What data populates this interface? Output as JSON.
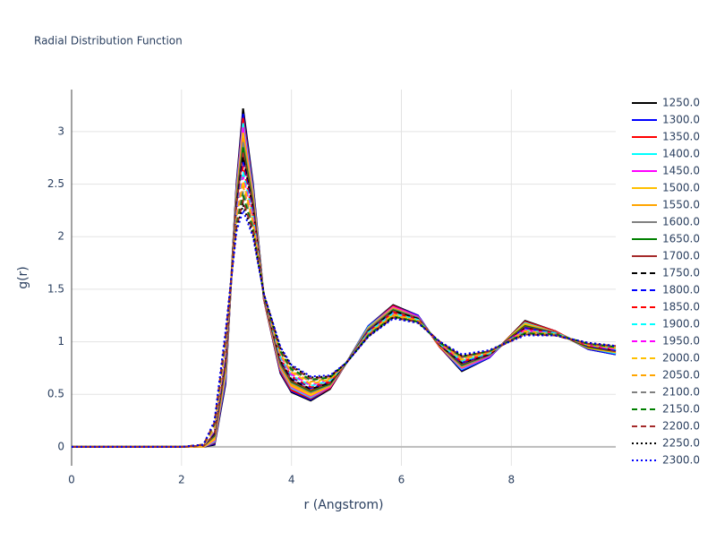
{
  "chart_data": {
    "type": "line",
    "title": "Radial Distribution Function",
    "x_label": "r (Angstrom)",
    "y_label": "g(r)",
    "x": [
      0,
      1,
      2,
      2.4,
      2.6,
      2.8,
      3.0,
      3.12,
      3.3,
      3.5,
      3.8,
      4.0,
      4.35,
      4.7,
      5.0,
      5.4,
      5.85,
      6.3,
      6.7,
      7.1,
      7.6,
      8.25,
      8.8,
      9.4,
      9.9
    ],
    "xlim": [
      0,
      9.9
    ],
    "xticks": [
      0,
      2,
      4,
      6,
      8
    ],
    "ylim": [
      -0.18,
      3.4
    ],
    "yticks": [
      0,
      0.5,
      1,
      1.5,
      2,
      2.5,
      3
    ],
    "grid": true,
    "series": [
      {
        "name": "1250.0",
        "color": "#000000",
        "dash": "solid",
        "values": [
          0,
          0,
          0,
          0,
          0.02,
          0.6,
          2.5,
          3.22,
          2.5,
          1.4,
          0.7,
          0.52,
          0.44,
          0.55,
          0.8,
          1.15,
          1.35,
          1.25,
          0.95,
          0.72,
          0.85,
          1.2,
          1.1,
          0.93,
          0.88
        ]
      },
      {
        "name": "1300.0",
        "color": "#0000ff",
        "dash": "solid",
        "values": [
          0,
          0,
          0,
          0,
          0.03,
          0.62,
          2.48,
          3.17,
          2.48,
          1.4,
          0.71,
          0.53,
          0.45,
          0.56,
          0.8,
          1.15,
          1.34,
          1.25,
          0.95,
          0.73,
          0.85,
          1.19,
          1.1,
          0.93,
          0.88
        ]
      },
      {
        "name": "1350.0",
        "color": "#ff0000",
        "dash": "solid",
        "values": [
          0,
          0,
          0,
          0,
          0.04,
          0.65,
          2.46,
          3.13,
          2.45,
          1.4,
          0.72,
          0.54,
          0.46,
          0.56,
          0.8,
          1.14,
          1.34,
          1.24,
          0.95,
          0.74,
          0.86,
          1.19,
          1.1,
          0.94,
          0.89
        ]
      },
      {
        "name": "1400.0",
        "color": "#00ffff",
        "dash": "solid",
        "values": [
          0,
          0,
          0,
          0,
          0.05,
          0.67,
          2.44,
          3.08,
          2.43,
          1.41,
          0.74,
          0.56,
          0.47,
          0.57,
          0.8,
          1.14,
          1.33,
          1.24,
          0.96,
          0.74,
          0.86,
          1.18,
          1.09,
          0.94,
          0.89
        ]
      },
      {
        "name": "1450.0",
        "color": "#ff00ff",
        "dash": "solid",
        "values": [
          0,
          0,
          0,
          0,
          0.06,
          0.7,
          2.41,
          3.04,
          2.4,
          1.41,
          0.75,
          0.57,
          0.48,
          0.57,
          0.8,
          1.13,
          1.33,
          1.24,
          0.96,
          0.75,
          0.86,
          1.17,
          1.09,
          0.94,
          0.9
        ]
      },
      {
        "name": "1500.0",
        "color": "#ffc000",
        "dash": "solid",
        "values": [
          0,
          0,
          0,
          0,
          0.07,
          0.72,
          2.39,
          2.99,
          2.38,
          1.41,
          0.76,
          0.58,
          0.49,
          0.58,
          0.8,
          1.13,
          1.32,
          1.23,
          0.96,
          0.76,
          0.87,
          1.17,
          1.09,
          0.94,
          0.9
        ]
      },
      {
        "name": "1550.0",
        "color": "#ffa500",
        "dash": "solid",
        "values": [
          0,
          0,
          0,
          0.01,
          0.09,
          0.74,
          2.37,
          2.94,
          2.36,
          1.41,
          0.77,
          0.59,
          0.51,
          0.59,
          0.8,
          1.12,
          1.31,
          1.23,
          0.96,
          0.77,
          0.87,
          1.16,
          1.09,
          0.95,
          0.9
        ]
      },
      {
        "name": "1600.0",
        "color": "#808080",
        "dash": "solid",
        "values": [
          0,
          0,
          0,
          0.01,
          0.1,
          0.77,
          2.35,
          2.9,
          2.33,
          1.42,
          0.78,
          0.61,
          0.52,
          0.59,
          0.8,
          1.12,
          1.31,
          1.23,
          0.97,
          0.77,
          0.87,
          1.15,
          1.09,
          0.95,
          0.91
        ]
      },
      {
        "name": "1650.0",
        "color": "#008000",
        "dash": "solid",
        "values": [
          0,
          0,
          0,
          0.01,
          0.11,
          0.79,
          2.33,
          2.85,
          2.31,
          1.42,
          0.8,
          0.62,
          0.53,
          0.6,
          0.8,
          1.11,
          1.3,
          1.22,
          0.97,
          0.78,
          0.88,
          1.15,
          1.08,
          0.95,
          0.91
        ]
      },
      {
        "name": "1700.0",
        "color": "#a52a2a",
        "dash": "solid",
        "values": [
          0,
          0,
          0,
          0.01,
          0.12,
          0.81,
          2.31,
          2.8,
          2.29,
          1.42,
          0.81,
          0.63,
          0.54,
          0.61,
          0.8,
          1.11,
          1.29,
          1.22,
          0.97,
          0.79,
          0.88,
          1.14,
          1.08,
          0.96,
          0.91
        ]
      },
      {
        "name": "1750.0",
        "color": "#000000",
        "dash": "dash",
        "values": [
          0,
          0,
          0,
          0.01,
          0.13,
          0.84,
          2.29,
          2.76,
          2.26,
          1.42,
          0.82,
          0.64,
          0.55,
          0.61,
          0.8,
          1.1,
          1.29,
          1.22,
          0.97,
          0.8,
          0.88,
          1.13,
          1.08,
          0.96,
          0.92
        ]
      },
      {
        "name": "1800.0",
        "color": "#0000ff",
        "dash": "dash",
        "values": [
          0,
          0,
          0,
          0.01,
          0.14,
          0.86,
          2.26,
          2.71,
          2.24,
          1.43,
          0.83,
          0.66,
          0.56,
          0.62,
          0.8,
          1.1,
          1.28,
          1.21,
          0.98,
          0.8,
          0.89,
          1.13,
          1.08,
          0.96,
          0.92
        ]
      },
      {
        "name": "1850.0",
        "color": "#ff0000",
        "dash": "dash",
        "values": [
          0,
          0,
          0,
          0.01,
          0.15,
          0.89,
          2.24,
          2.67,
          2.21,
          1.43,
          0.84,
          0.67,
          0.57,
          0.62,
          0.8,
          1.09,
          1.28,
          1.21,
          0.98,
          0.81,
          0.89,
          1.12,
          1.08,
          0.96,
          0.93
        ]
      },
      {
        "name": "1900.0",
        "color": "#00ffff",
        "dash": "dash",
        "values": [
          0,
          0,
          0,
          0.01,
          0.16,
          0.91,
          2.22,
          2.62,
          2.19,
          1.43,
          0.85,
          0.68,
          0.58,
          0.63,
          0.8,
          1.09,
          1.27,
          1.21,
          0.98,
          0.82,
          0.89,
          1.11,
          1.08,
          0.97,
          0.93
        ]
      },
      {
        "name": "1950.0",
        "color": "#ff00ff",
        "dash": "dash",
        "values": [
          0,
          0,
          0,
          0.01,
          0.17,
          0.93,
          2.2,
          2.57,
          2.17,
          1.43,
          0.87,
          0.69,
          0.59,
          0.64,
          0.8,
          1.08,
          1.26,
          1.2,
          0.98,
          0.83,
          0.9,
          1.11,
          1.07,
          0.97,
          0.93
        ]
      },
      {
        "name": "2000.0",
        "color": "#ffc000",
        "dash": "dash",
        "values": [
          0,
          0,
          0,
          0.01,
          0.18,
          0.96,
          2.18,
          2.53,
          2.14,
          1.44,
          0.88,
          0.71,
          0.6,
          0.64,
          0.8,
          1.08,
          1.26,
          1.2,
          0.99,
          0.83,
          0.9,
          1.1,
          1.07,
          0.97,
          0.94
        ]
      },
      {
        "name": "2050.0",
        "color": "#ffa500",
        "dash": "dash",
        "values": [
          0,
          0,
          0,
          0.02,
          0.2,
          0.98,
          2.16,
          2.48,
          2.12,
          1.44,
          0.89,
          0.72,
          0.62,
          0.65,
          0.8,
          1.07,
          1.25,
          1.2,
          0.99,
          0.84,
          0.9,
          1.09,
          1.07,
          0.98,
          0.94
        ]
      },
      {
        "name": "2100.0",
        "color": "#808080",
        "dash": "dash",
        "values": [
          0,
          0,
          0,
          0.02,
          0.21,
          1.0,
          2.14,
          2.43,
          2.1,
          1.44,
          0.9,
          0.73,
          0.63,
          0.66,
          0.8,
          1.07,
          1.24,
          1.19,
          0.99,
          0.85,
          0.91,
          1.09,
          1.07,
          0.98,
          0.95
        ]
      },
      {
        "name": "2150.0",
        "color": "#008000",
        "dash": "dash",
        "values": [
          0,
          0,
          0,
          0.02,
          0.22,
          1.03,
          2.11,
          2.39,
          2.07,
          1.44,
          0.91,
          0.74,
          0.64,
          0.66,
          0.8,
          1.06,
          1.24,
          1.19,
          0.99,
          0.86,
          0.91,
          1.08,
          1.07,
          0.98,
          0.95
        ]
      },
      {
        "name": "2200.0",
        "color": "#a52a2a",
        "dash": "dash",
        "values": [
          0,
          0,
          0,
          0.02,
          0.23,
          1.05,
          2.09,
          2.34,
          2.05,
          1.45,
          0.93,
          0.76,
          0.65,
          0.67,
          0.8,
          1.06,
          1.23,
          1.19,
          1.0,
          0.86,
          0.91,
          1.07,
          1.06,
          0.98,
          0.96
        ]
      },
      {
        "name": "2250.0",
        "color": "#000000",
        "dash": "dot",
        "values": [
          0,
          0,
          0,
          0.02,
          0.24,
          1.08,
          2.07,
          2.3,
          2.02,
          1.45,
          0.94,
          0.77,
          0.66,
          0.67,
          0.8,
          1.05,
          1.23,
          1.18,
          1.0,
          0.87,
          0.92,
          1.07,
          1.06,
          0.99,
          0.96
        ]
      },
      {
        "name": "2300.0",
        "color": "#0000ff",
        "dash": "dot",
        "values": [
          0,
          0,
          0,
          0.02,
          0.25,
          1.1,
          2.05,
          2.25,
          2.0,
          1.45,
          0.95,
          0.78,
          0.67,
          0.68,
          0.8,
          1.05,
          1.22,
          1.18,
          1.0,
          0.88,
          0.92,
          1.06,
          1.06,
          0.99,
          0.96
        ]
      }
    ]
  }
}
